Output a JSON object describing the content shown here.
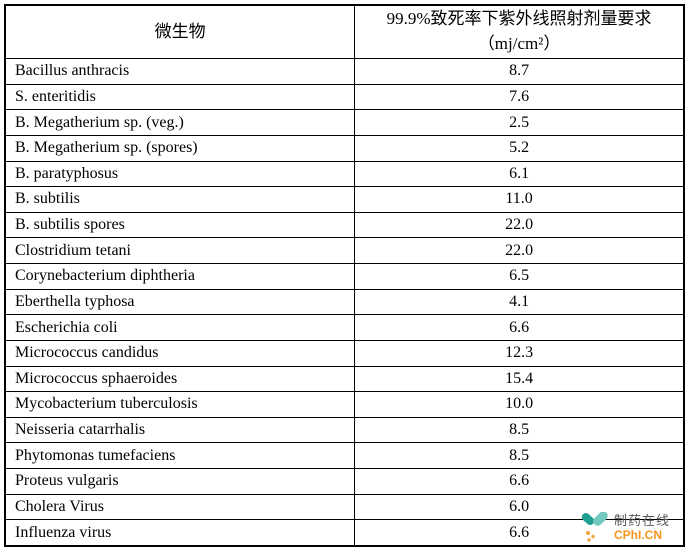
{
  "table": {
    "headers": {
      "col1": "微生物",
      "col2_line1": "99.9%致死率下紫外线照射剂量要求",
      "col2_line2": "（mj/cm²）"
    },
    "rows": [
      {
        "name": "Bacillus anthracis",
        "dose": "8.7"
      },
      {
        "name": "S. enteritidis",
        "dose": "7.6"
      },
      {
        "name": "B. Megatherium sp. (veg.)",
        "dose": "2.5"
      },
      {
        "name": "B. Megatherium sp. (spores)",
        "dose": "5.2"
      },
      {
        "name": "B. paratyphosus",
        "dose": "6.1"
      },
      {
        "name": "B. subtilis",
        "dose": "11.0"
      },
      {
        "name": "B. subtilis spores",
        "dose": "22.0"
      },
      {
        "name": "Clostridium tetani",
        "dose": "22.0"
      },
      {
        "name": "Corynebacterium diphtheria",
        "dose": "6.5"
      },
      {
        "name": "Eberthella typhosa",
        "dose": "4.1"
      },
      {
        "name": "Escherichia coli",
        "dose": "6.6"
      },
      {
        "name": "Micrococcus candidus",
        "dose": "12.3"
      },
      {
        "name": "Micrococcus sphaeroides",
        "dose": "15.4"
      },
      {
        "name": "Mycobacterium tuberculosis",
        "dose": "10.0"
      },
      {
        "name": "Neisseria catarrhalis",
        "dose": "8.5"
      },
      {
        "name": "Phytomonas tumefaciens",
        "dose": "8.5"
      },
      {
        "name": "Proteus vulgaris",
        "dose": "6.6"
      },
      {
        "name": "Cholera Virus",
        "dose": "6.0"
      },
      {
        "name": "Influenza virus",
        "dose": "6.6"
      }
    ]
  },
  "watermark": {
    "brand_cn": "制药在线",
    "brand_en": "CPhI.CN",
    "colors": {
      "capsule_dark_teal": "#1f9e92",
      "capsule_light_teal": "#74c9bf",
      "dots_orange": "#f2a33c",
      "text_gray": "#595959",
      "text_orange": "#f7941d"
    }
  },
  "chart_data": {
    "type": "table",
    "title": "",
    "columns": [
      "微生物",
      "99.9%致死率下紫外线照射剂量要求（mj/cm²）"
    ],
    "rows": [
      [
        "Bacillus anthracis",
        8.7
      ],
      [
        "S. enteritidis",
        7.6
      ],
      [
        "B. Megatherium sp. (veg.)",
        2.5
      ],
      [
        "B. Megatherium sp. (spores)",
        5.2
      ],
      [
        "B. paratyphosus",
        6.1
      ],
      [
        "B. subtilis",
        11.0
      ],
      [
        "B. subtilis spores",
        22.0
      ],
      [
        "Clostridium tetani",
        22.0
      ],
      [
        "Corynebacterium diphtheria",
        6.5
      ],
      [
        "Eberthella typhosa",
        4.1
      ],
      [
        "Escherichia coli",
        6.6
      ],
      [
        "Micrococcus candidus",
        12.3
      ],
      [
        "Micrococcus sphaeroides",
        15.4
      ],
      [
        "Mycobacterium tuberculosis",
        10.0
      ],
      [
        "Neisseria catarrhalis",
        8.5
      ],
      [
        "Phytomonas tumefaciens",
        8.5
      ],
      [
        "Proteus vulgaris",
        6.6
      ],
      [
        "Cholera Virus",
        6.0
      ],
      [
        "Influenza virus",
        6.6
      ]
    ]
  }
}
